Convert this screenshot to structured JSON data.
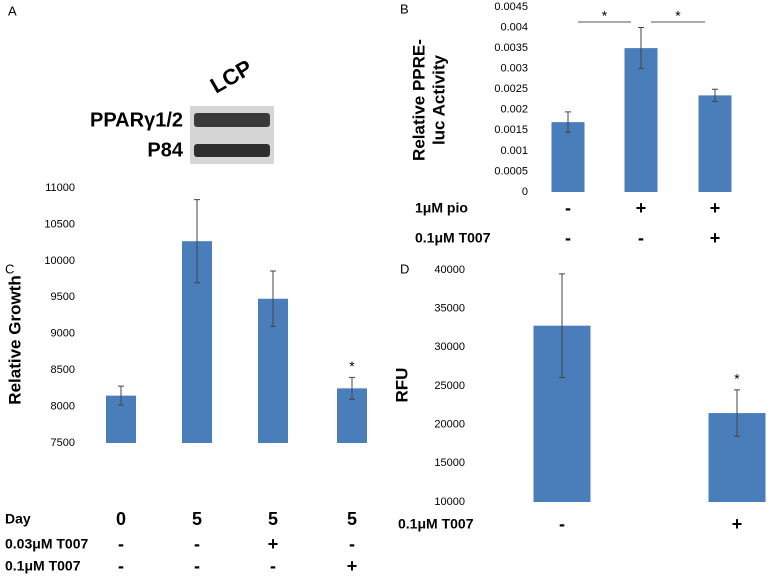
{
  "panel_a": {
    "panel_label": "A",
    "lane_label": "LCP",
    "rows": [
      "PPARγ1/2",
      "P84"
    ]
  },
  "chart_data": [
    {
      "type": "bar",
      "panel_label": "B",
      "ylabel_lines": [
        "Relative PPRE-",
        "luc Activity"
      ],
      "values": [
        0.0017,
        0.0035,
        0.00235
      ],
      "errors": [
        0.00025,
        0.0005,
        0.00015
      ],
      "color": "#4a7ebb",
      "ylim": [
        0,
        0.0045
      ],
      "yticks": [
        0,
        0.0005,
        0.001,
        0.0015,
        0.002,
        0.0025,
        0.003,
        0.0035,
        0.004,
        0.0045
      ],
      "brackets": [
        {
          "from": 0,
          "to": 1,
          "label": "*"
        },
        {
          "from": 1,
          "to": 2,
          "label": "*"
        }
      ],
      "conditions": [
        {
          "name": "1μM pio",
          "marks": [
            "-",
            "+",
            "+"
          ]
        },
        {
          "name": "0.1μM T007",
          "marks": [
            "-",
            "-",
            "+"
          ]
        }
      ]
    },
    {
      "type": "bar",
      "panel_label": "C",
      "ylabel_lines": [
        "Relative Growth"
      ],
      "values": [
        8150,
        10270,
        9480,
        8250
      ],
      "errors": [
        130,
        570,
        380,
        150
      ],
      "color": "#4a7ebb",
      "ylim": [
        7500,
        11000
      ],
      "yticks": [
        7500,
        8000,
        8500,
        9000,
        9500,
        10000,
        10500,
        11000
      ],
      "stars": [
        null,
        null,
        null,
        "*"
      ],
      "conditions": [
        {
          "name": "Day",
          "marks": [
            "0",
            "5",
            "5",
            "5"
          ]
        },
        {
          "name": "0.03μM T007",
          "marks": [
            "-",
            "-",
            "+",
            "-"
          ]
        },
        {
          "name": "0.1μM T007",
          "marks": [
            "-",
            "-",
            "-",
            "+"
          ]
        }
      ]
    },
    {
      "type": "bar",
      "panel_label": "D",
      "ylabel_lines": [
        "RFU"
      ],
      "values": [
        32800,
        21500
      ],
      "errors": [
        6700,
        3000
      ],
      "color": "#4a7ebb",
      "ylim": [
        10000,
        40000
      ],
      "yticks": [
        10000,
        15000,
        20000,
        25000,
        30000,
        35000,
        40000
      ],
      "stars": [
        null,
        "*"
      ],
      "conditions": [
        {
          "name": "0.1μM T007",
          "marks": [
            "-",
            "+"
          ]
        }
      ]
    }
  ]
}
